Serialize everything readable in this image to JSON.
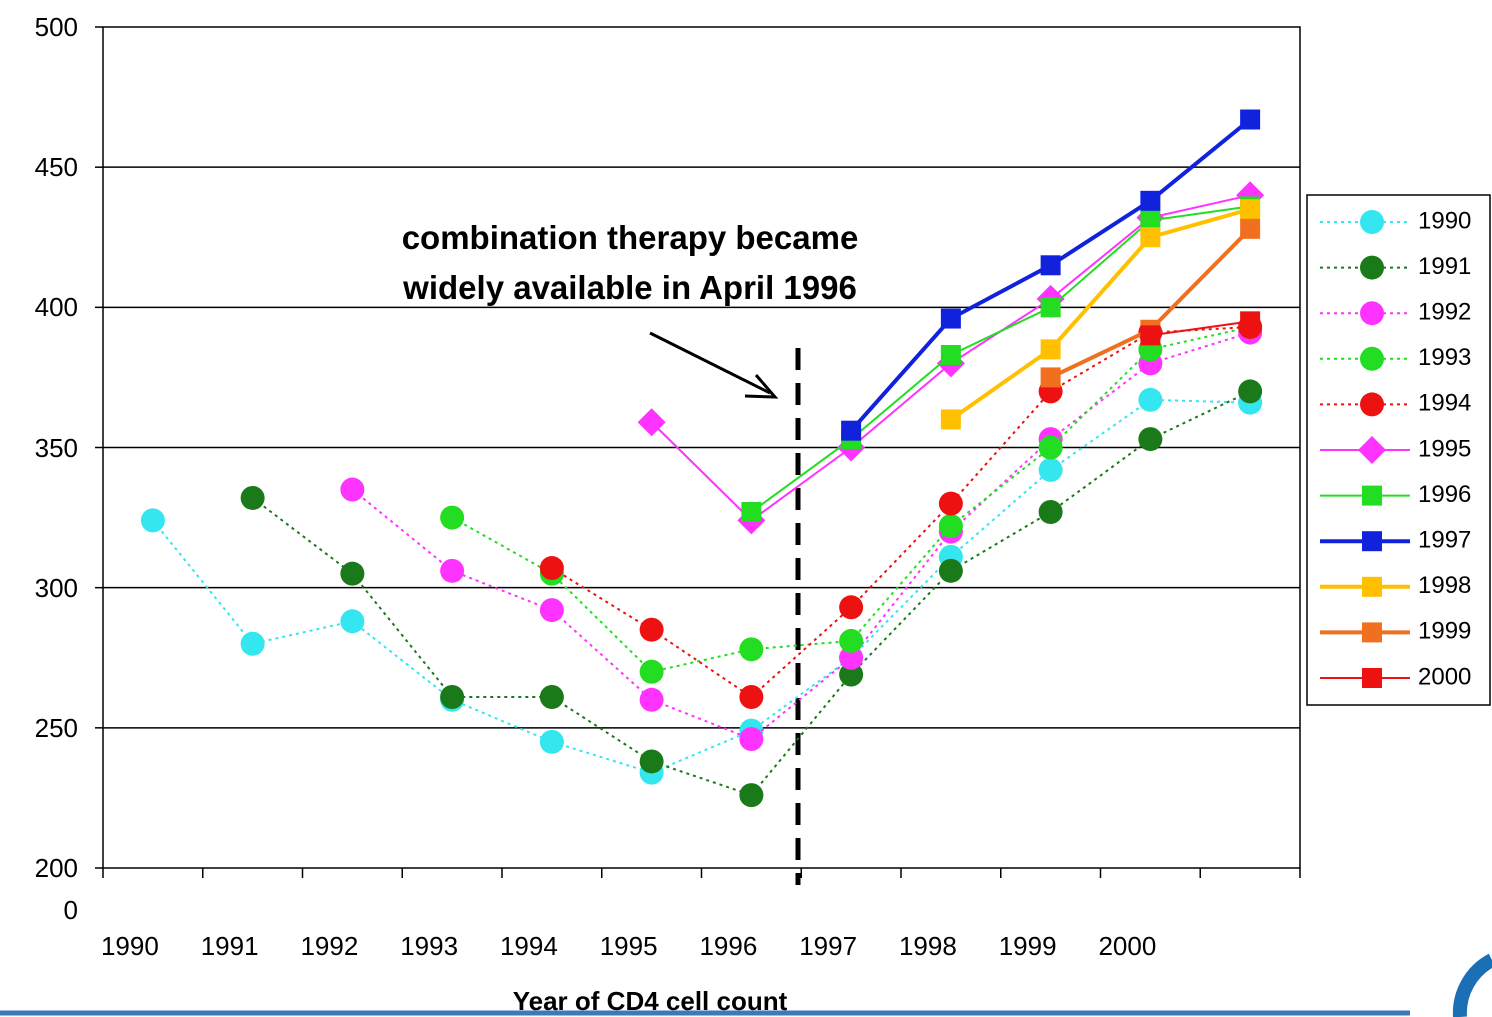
{
  "chart_data": {
    "type": "line",
    "xlabel": "Year of CD4 cell count",
    "annotation": "combination therapy became\nwidely available in April 1996",
    "categories": [
      "1990",
      "1991",
      "1992",
      "1993",
      "1994",
      "1995",
      "1996",
      "1997",
      "1998",
      "1999",
      "2000",
      null
    ],
    "ylim": [
      200,
      500
    ],
    "yticks": [
      {
        "value": 200,
        "label": "200\n0"
      },
      250,
      300,
      350,
      400,
      450,
      500
    ],
    "grid": true,
    "legend": "right",
    "series": [
      {
        "name": "1990",
        "color": "#33e6f0",
        "dash": "dotted",
        "marker": "circle",
        "values": [
          324,
          280,
          288,
          260,
          245,
          234,
          249,
          275,
          311,
          342,
          367,
          366
        ]
      },
      {
        "name": "1991",
        "color": "#1a7a1a",
        "dash": "dotted",
        "marker": "circle",
        "values": [
          null,
          332,
          305,
          261,
          261,
          238,
          226,
          269,
          306,
          327,
          353,
          370
        ]
      },
      {
        "name": "1992",
        "color": "#ff33ff",
        "dash": "dotted",
        "marker": "circle",
        "values": [
          null,
          null,
          335,
          306,
          292,
          260,
          246,
          275,
          320,
          353,
          380,
          391
        ]
      },
      {
        "name": "1993",
        "color": "#22dd22",
        "dash": "dotted",
        "marker": "circle",
        "values": [
          null,
          null,
          null,
          325,
          305,
          270,
          278,
          281,
          322,
          350,
          385,
          393
        ]
      },
      {
        "name": "1994",
        "color": "#ee1111",
        "dash": "dotted",
        "marker": "circle",
        "values": [
          null,
          null,
          null,
          null,
          307,
          285,
          261,
          293,
          330,
          370,
          391,
          393
        ]
      },
      {
        "name": "1995",
        "color": "#ff33ff",
        "dash": "solid",
        "marker": "diamond",
        "values": [
          null,
          null,
          null,
          null,
          null,
          359,
          324,
          350,
          380,
          403,
          432,
          440
        ]
      },
      {
        "name": "1996",
        "color": "#22dd22",
        "dash": "solid",
        "marker": "square",
        "values": [
          null,
          null,
          null,
          null,
          null,
          null,
          327,
          353,
          383,
          400,
          431,
          436
        ]
      },
      {
        "name": "1997",
        "color": "#1122dd",
        "dash": "solid",
        "marker": "square",
        "line_width": 4,
        "values": [
          null,
          null,
          null,
          null,
          null,
          null,
          null,
          356,
          396,
          415,
          438,
          467
        ]
      },
      {
        "name": "1998",
        "color": "#ffc000",
        "dash": "solid",
        "marker": "square",
        "line_width": 4,
        "values": [
          null,
          null,
          null,
          null,
          null,
          null,
          null,
          null,
          360,
          385,
          425,
          435
        ]
      },
      {
        "name": "1999",
        "color": "#f07020",
        "dash": "solid",
        "marker": "square",
        "line_width": 4,
        "values": [
          null,
          null,
          null,
          null,
          null,
          null,
          null,
          null,
          null,
          375,
          392,
          428
        ]
      },
      {
        "name": "2000",
        "color": "#ee1111",
        "dash": "solid",
        "marker": "square",
        "values": [
          null,
          null,
          null,
          null,
          null,
          null,
          null,
          null,
          null,
          null,
          390,
          395
        ]
      }
    ]
  }
}
